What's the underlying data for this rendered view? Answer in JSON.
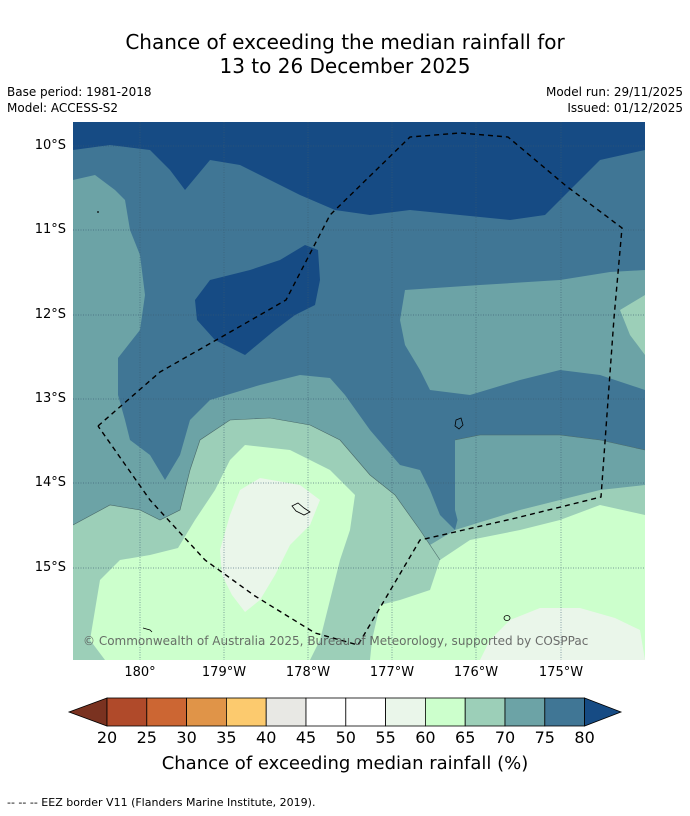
{
  "title": {
    "line1": "Chance of exceeding the median rainfall for",
    "line2": "13 to 26 December 2025"
  },
  "meta": {
    "base_period": "Base period: 1981-2018",
    "model": "Model: ACCESS-S2",
    "model_run": "Model run: 29/11/2025",
    "issued": "Issued: 01/12/2025"
  },
  "map": {
    "lat_labels": [
      "10°S",
      "11°S",
      "12°S",
      "13°S",
      "14°S",
      "15°S"
    ],
    "lon_labels": [
      "180°",
      "179°W",
      "178°W",
      "177°W",
      "176°W",
      "175°W"
    ],
    "credit": "© Commonwealth of Australia 2025, Bureau of Meteorology, supported by COSPPac"
  },
  "colorbar": {
    "ticks": [
      "20",
      "25",
      "30",
      "35",
      "40",
      "45",
      "50",
      "55",
      "60",
      "65",
      "70",
      "75",
      "80"
    ],
    "colors": [
      "#7a3220",
      "#b04a2a",
      "#cc6633",
      "#e09448",
      "#fcca6e",
      "#e8e8e4",
      "#ffffff",
      "#ffffff",
      "#eaf6ea",
      "#ccffcc",
      "#9ccfb8",
      "#6ca3a6",
      "#407695",
      "#164b84"
    ],
    "label": "Chance of exceeding median rainfall (%)"
  },
  "legend": {
    "eez": "--  --  -- EEZ border V11 (Flanders Marine Institute, 2019)."
  },
  "palette": {
    "c80": "#164b84",
    "c75": "#407695",
    "c70": "#6ca3a6",
    "c65": "#9ccfb8",
    "c60": "#ccffcc",
    "c55": "#eaf6ea"
  }
}
